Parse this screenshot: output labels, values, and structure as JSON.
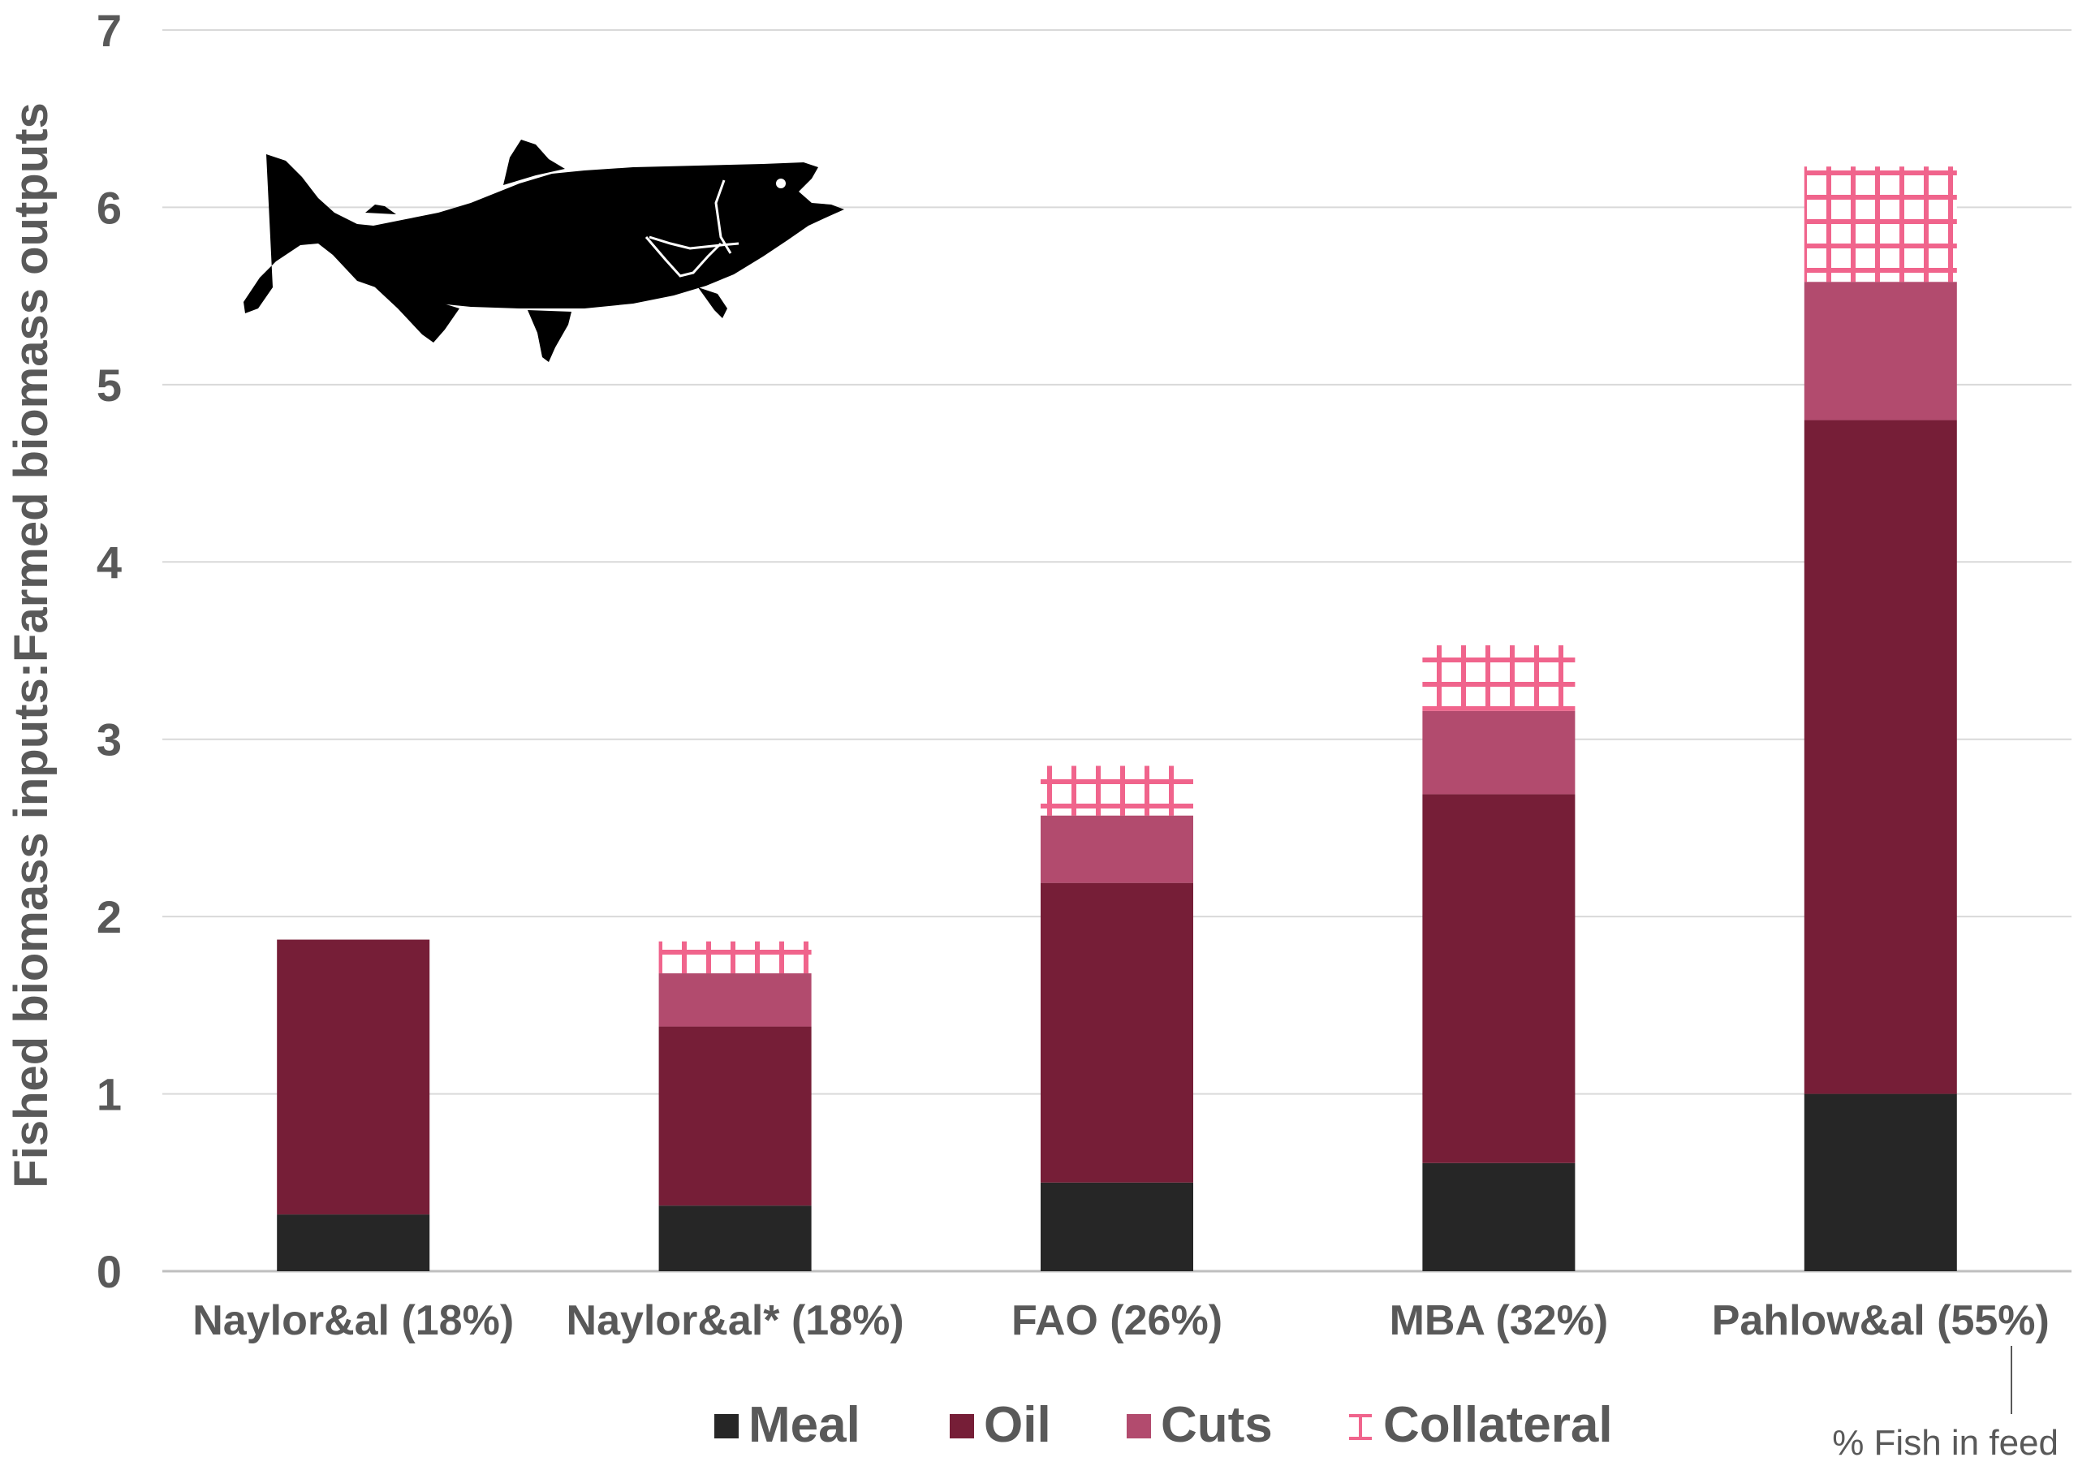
{
  "chart_data": {
    "type": "bar",
    "stacked": true,
    "title": "",
    "xlabel": "",
    "ylabel": "Fished biomass inputs:Farmed biomass outputs",
    "ylim": [
      0,
      7
    ],
    "yticks": [
      0,
      1,
      2,
      3,
      4,
      5,
      6,
      7
    ],
    "grid": true,
    "legend_position": "bottom",
    "categories": [
      "Naylor&al (18%)",
      "Naylor&al* (18%)",
      "FAO (26%)",
      "MBA (32%)",
      "Pahlow&al (55%)"
    ],
    "series": [
      {
        "name": "Meal",
        "color": "#262626",
        "pattern": "solid",
        "values": [
          0.32,
          0.37,
          0.5,
          0.61,
          1.0
        ]
      },
      {
        "name": "Oil",
        "color": "#761e37",
        "pattern": "solid",
        "values": [
          1.55,
          1.01,
          1.69,
          2.08,
          3.8
        ]
      },
      {
        "name": "Cuts",
        "color": "#b24b6e",
        "pattern": "solid",
        "values": [
          0,
          0.3,
          0.38,
          0.47,
          0.78
        ]
      },
      {
        "name": "Collateral",
        "color": "#f0648c",
        "pattern": "grid",
        "values": [
          0,
          0.18,
          0.28,
          0.37,
          0.65
        ]
      }
    ],
    "annotation": "% Fish in feed",
    "icon": "salmon-silhouette-icon"
  }
}
